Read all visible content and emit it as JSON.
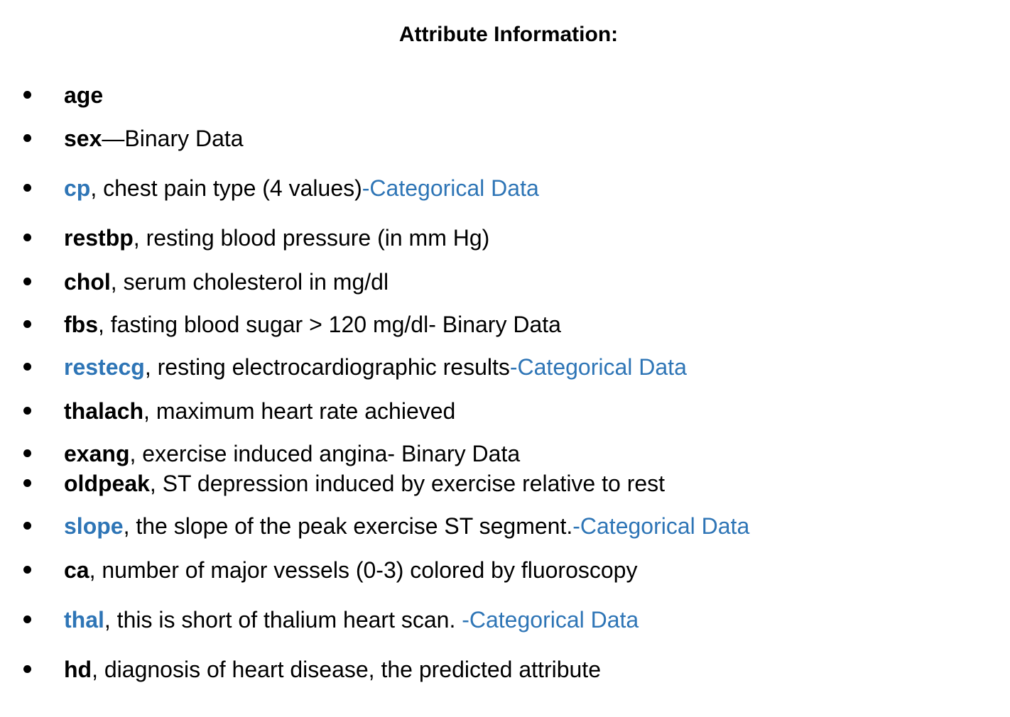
{
  "title": "Attribute Information:",
  "colors": {
    "text": "#000000",
    "accent_blue": "#2e75b6",
    "background": "#ffffff"
  },
  "attributes": [
    {
      "name": "age",
      "desc": "",
      "note": "",
      "name_color": "black"
    },
    {
      "name": "sex",
      "desc": "—Binary Data",
      "note": "",
      "name_color": "black"
    },
    {
      "name": "cp",
      "desc": ", chest pain type (4 values)",
      "note": "-Categorical Data",
      "name_color": "blue"
    },
    {
      "name": "restbp",
      "desc": ", resting blood pressure (in mm Hg)",
      "note": "",
      "name_color": "black"
    },
    {
      "name": "chol",
      "desc": ", serum cholesterol in mg/dl",
      "note": "",
      "name_color": "black"
    },
    {
      "name": "fbs",
      "desc": ", fasting blood sugar > 120 mg/dl- Binary Data",
      "note": "",
      "name_color": "black"
    },
    {
      "name": "restecg",
      "desc": ", resting electrocardiographic results",
      "note": "-Categorical Data",
      "name_color": "blue"
    },
    {
      "name": "thalach",
      "desc": ", maximum heart rate achieved",
      "note": "",
      "name_color": "black"
    },
    {
      "name": "exang",
      "desc": ", exercise induced angina- Binary Data",
      "note": "",
      "name_color": "black"
    },
    {
      "name": "oldpeak",
      "desc": ", ST depression induced by exercise relative to rest",
      "note": "",
      "name_color": "black"
    },
    {
      "name": "slope",
      "desc": ", the slope of the peak exercise ST segment.",
      "note": "-Categorical Data",
      "name_color": "blue"
    },
    {
      "name": "ca",
      "desc": ", number of major vessels (0-3) colored by fluoroscopy",
      "note": "",
      "name_color": "black"
    },
    {
      "name": "thal",
      "desc": ", this is short of thalium heart scan. ",
      "note": "-Categorical Data",
      "name_color": "blue"
    },
    {
      "name": "hd",
      "desc": ", diagnosis of heart disease, the predicted attribute",
      "note": "",
      "name_color": "black"
    }
  ]
}
